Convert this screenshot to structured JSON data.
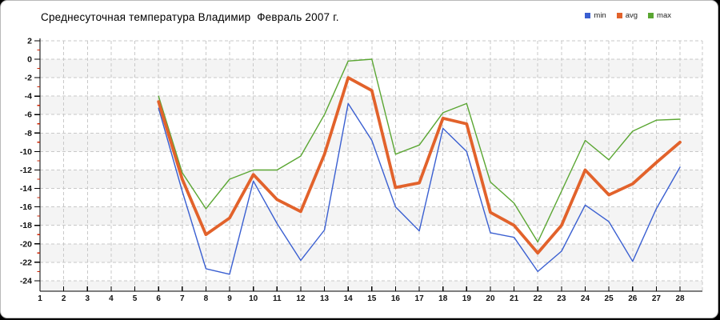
{
  "panel": {
    "background": "#ffffff",
    "border_color": "#b9b9b9"
  },
  "chart_data": {
    "type": "line",
    "title": "Среднесуточная температура Владимир  Февраль 2007 г.",
    "xlabel": "",
    "ylabel": "",
    "x_ticks": [
      1,
      2,
      3,
      4,
      5,
      6,
      7,
      8,
      9,
      10,
      11,
      12,
      13,
      14,
      15,
      16,
      17,
      18,
      19,
      20,
      21,
      22,
      23,
      24,
      25,
      26,
      27,
      28
    ],
    "ylim": [
      -24,
      2
    ],
    "y_tick_step": 2,
    "y_minor_tick_step": 1,
    "grid": "dashed",
    "legend_position": "top-right",
    "start_day": 6,
    "series": [
      {
        "name": "min",
        "color": "#3a5fd1",
        "values": [
          -5.3,
          -14.3,
          -22.7,
          -23.3,
          -13.2,
          -17.8,
          -21.8,
          -18.5,
          -4.8,
          -8.8,
          -16.0,
          -18.6,
          -7.5,
          -10.0,
          -18.8,
          -19.3,
          -23.0,
          -20.8,
          -15.8,
          -17.6,
          -21.9,
          -16.2,
          -11.7
        ]
      },
      {
        "name": "avg",
        "color": "#e2622b",
        "values": [
          -4.6,
          -13.0,
          -19.0,
          -17.2,
          -12.5,
          -15.2,
          -16.5,
          -10.3,
          -2.0,
          -3.4,
          -13.9,
          -13.4,
          -6.4,
          -7.0,
          -16.6,
          -18.0,
          -21.0,
          -18.0,
          -12.0,
          -14.7,
          -13.5,
          -11.2,
          -9.0
        ]
      },
      {
        "name": "max",
        "color": "#5aa632",
        "values": [
          -4.0,
          -12.3,
          -16.2,
          -13.0,
          -12.0,
          -12.0,
          -10.5,
          -6.0,
          -0.2,
          0.0,
          -10.3,
          -9.3,
          -5.8,
          -4.8,
          -13.3,
          -15.6,
          -19.8,
          -14.3,
          -8.8,
          -10.9,
          -7.8,
          -6.6,
          -6.5
        ]
      }
    ],
    "colors": {
      "grid": "#c9c9c9",
      "band": "#f4f4f4",
      "axis": "#000000",
      "minor_tick": "#cc2200",
      "label": "#111111"
    }
  }
}
